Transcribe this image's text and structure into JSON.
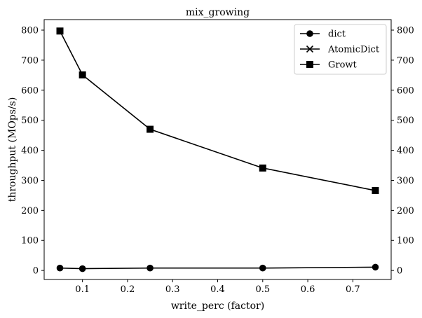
{
  "chart_data": {
    "type": "line",
    "title": "mix_growing",
    "xlabel": "write_perc (factor)",
    "ylabel": "throughput (MOps/s)",
    "xlim": [
      0.015,
      0.785
    ],
    "ylim": [
      -30,
      835
    ],
    "xticks": [
      0.1,
      0.2,
      0.3,
      0.4,
      0.5,
      0.6,
      0.7
    ],
    "xtick_labels": [
      "0.1",
      "0.2",
      "0.3",
      "0.4",
      "0.5",
      "0.6",
      "0.7"
    ],
    "yticks": [
      0,
      100,
      200,
      300,
      400,
      500,
      600,
      700,
      800
    ],
    "ytick_labels": [
      "0",
      "100",
      "200",
      "300",
      "400",
      "500",
      "600",
      "700",
      "800"
    ],
    "secondary_y_axis": true,
    "grid": false,
    "legend_position": "top-right",
    "x": [
      0.05,
      0.1,
      0.25,
      0.5,
      0.75
    ],
    "series": [
      {
        "name": "dict",
        "marker": "circle",
        "color": "#000000",
        "values": [
          8,
          6,
          8,
          8,
          11
        ]
      },
      {
        "name": "AtomicDict",
        "marker": "x",
        "color": "#000000",
        "values": [
          null,
          null,
          null,
          null,
          null
        ]
      },
      {
        "name": "Growt",
        "marker": "square",
        "color": "#000000",
        "values": [
          797,
          651,
          470,
          341,
          266
        ]
      }
    ]
  }
}
